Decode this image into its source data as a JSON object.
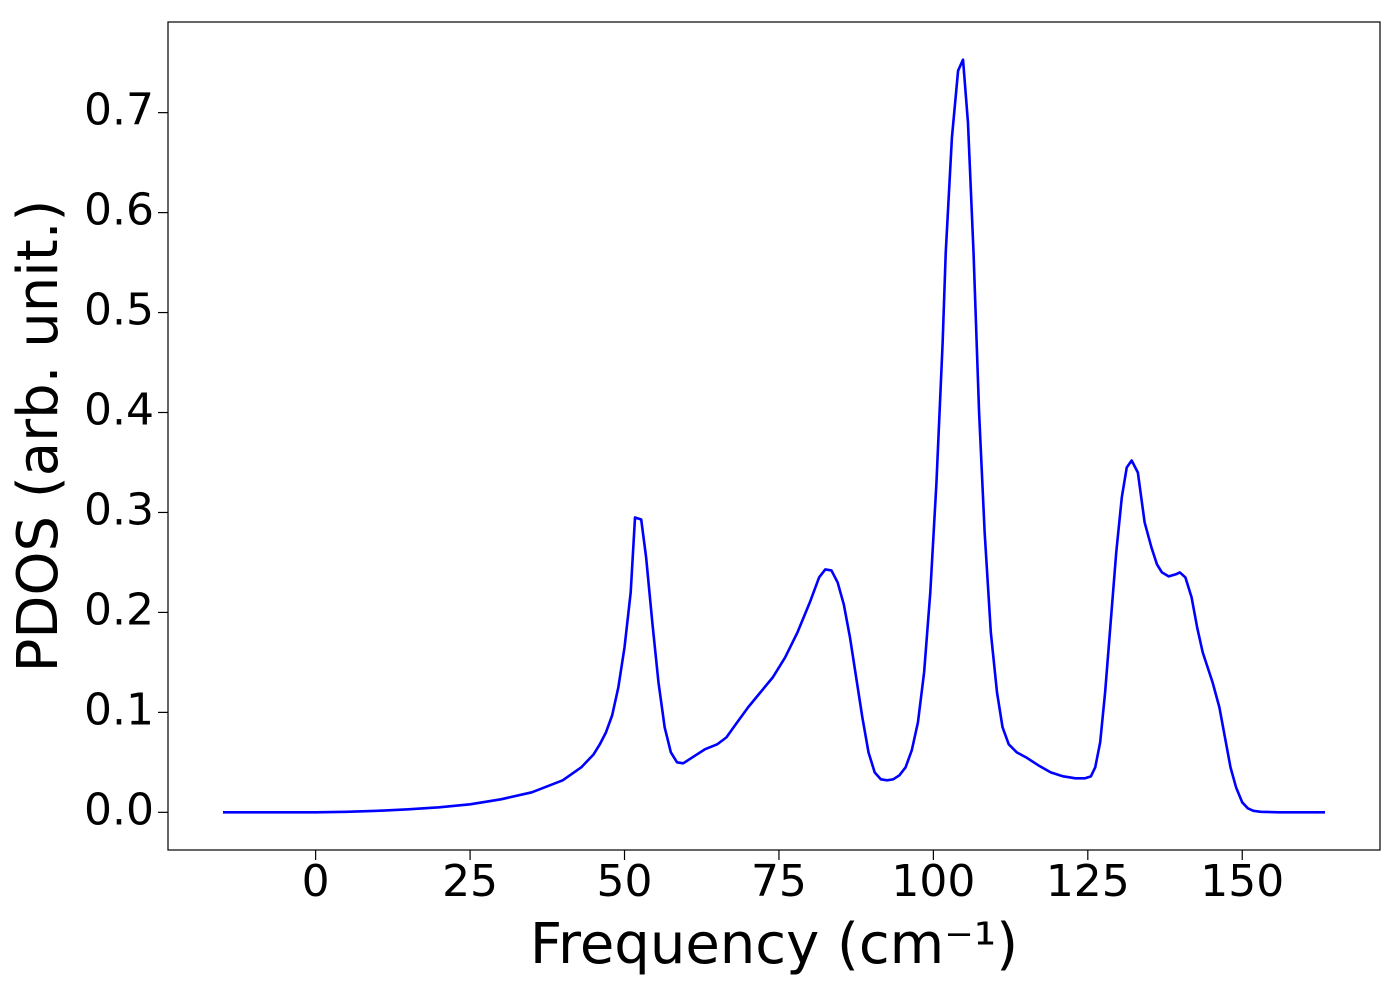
{
  "chart_data": {
    "type": "line",
    "xlabel": "Frequency (cm⁻¹)",
    "ylabel": "PDOS (arb. unit.)",
    "xlim": [
      -23.9,
      172.3
    ],
    "ylim": [
      -0.0377,
      0.7907
    ],
    "xticks": [
      0,
      25,
      50,
      75,
      100,
      125,
      150
    ],
    "yticks": [
      {
        "value": 0,
        "label": "0.0"
      },
      0.1,
      0.2,
      0.3,
      0.4,
      0.5,
      0.6,
      0.7
    ],
    "x": [
      -15,
      0,
      5,
      10,
      15,
      20,
      25,
      30,
      35,
      40,
      43,
      45,
      46,
      47,
      48,
      49,
      50,
      51,
      51.7,
      52.7,
      53.5,
      54.5,
      55.5,
      56.5,
      57.5,
      58.5,
      59.5,
      61,
      63,
      65,
      66.5,
      68,
      70,
      72,
      74,
      76,
      78,
      80,
      81.5,
      82.5,
      83.5,
      84.5,
      85.5,
      86.5,
      87.5,
      88.5,
      89.5,
      90.5,
      91.5,
      92.5,
      93.5,
      94.5,
      95.5,
      96.5,
      97.5,
      98.5,
      99.5,
      100.5,
      101.5,
      102,
      103,
      104,
      104.8,
      105.6,
      106.5,
      107.4,
      108.3,
      109.3,
      110.3,
      111.2,
      112.2,
      113.5,
      115,
      117,
      119,
      121,
      123,
      124.5,
      125.5,
      126.2,
      127,
      127.8,
      128.7,
      129.6,
      130.5,
      131.3,
      132.1,
      133.1,
      134.2,
      135.3,
      136.2,
      137,
      138.1,
      139.2,
      139.9,
      140.8,
      141.8,
      142.7,
      143.6,
      145.2,
      146.3,
      147.2,
      148.1,
      149,
      150,
      150.9,
      151.8,
      153,
      156,
      163.4
    ],
    "series": [
      {
        "color": "#0000ff",
        "values": [
          0,
          0,
          0.0005,
          0.0015,
          0.003,
          0.005,
          0.008,
          0.013,
          0.02,
          0.032,
          0.045,
          0.058,
          0.068,
          0.08,
          0.097,
          0.125,
          0.165,
          0.22,
          0.295,
          0.293,
          0.255,
          0.19,
          0.13,
          0.085,
          0.06,
          0.05,
          0.049,
          0.055,
          0.063,
          0.068,
          0.075,
          0.088,
          0.105,
          0.12,
          0.135,
          0.155,
          0.18,
          0.21,
          0.235,
          0.243,
          0.242,
          0.23,
          0.208,
          0.175,
          0.135,
          0.095,
          0.06,
          0.04,
          0.033,
          0.032,
          0.033,
          0.037,
          0.045,
          0.062,
          0.09,
          0.14,
          0.22,
          0.33,
          0.47,
          0.56,
          0.675,
          0.742,
          0.753,
          0.69,
          0.56,
          0.4,
          0.28,
          0.18,
          0.12,
          0.085,
          0.068,
          0.06,
          0.055,
          0.047,
          0.04,
          0.036,
          0.034,
          0.034,
          0.036,
          0.045,
          0.07,
          0.12,
          0.19,
          0.26,
          0.315,
          0.345,
          0.352,
          0.34,
          0.29,
          0.265,
          0.248,
          0.24,
          0.236,
          0.238,
          0.24,
          0.235,
          0.215,
          0.185,
          0.16,
          0.13,
          0.105,
          0.075,
          0.045,
          0.025,
          0.01,
          0.004,
          0.0015,
          0.0005,
          0,
          0
        ]
      }
    ]
  }
}
